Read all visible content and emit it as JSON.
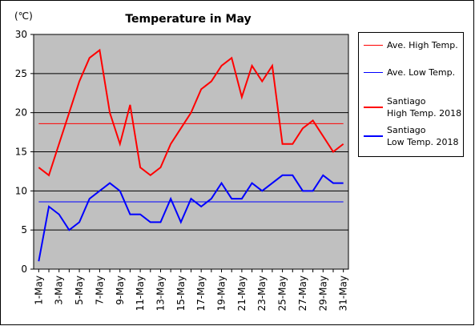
{
  "chart_data": {
    "type": "line",
    "title": "Temperature in May",
    "y_unit": "(℃)",
    "categories": [
      "1-May",
      null,
      "3-May",
      null,
      "5-May",
      null,
      "7-May",
      null,
      "9-May",
      null,
      "11-May",
      null,
      "13-May",
      null,
      "15-May",
      null,
      "17-May",
      null,
      "19-May",
      null,
      "21-May",
      null,
      "23-May",
      null,
      "25-May",
      null,
      "27-May",
      null,
      "29-May",
      null,
      "31-May"
    ],
    "reference_lines": [
      {
        "name": "Ave. High Temp.",
        "color": "#ff0000",
        "value": 18.6
      },
      {
        "name": "Ave. Low Temp.",
        "color": "#0000ff",
        "value": 8.6
      }
    ],
    "series": [
      {
        "name": "Santiago\nHigh Temp. 2018",
        "color": "#ff0000",
        "values": [
          13,
          12,
          16,
          20,
          24,
          27,
          28,
          20,
          16,
          21,
          13,
          12,
          13,
          16,
          18,
          20,
          23,
          24,
          26,
          27,
          22,
          26,
          24,
          26,
          16,
          16,
          18,
          19,
          17,
          15,
          16
        ]
      },
      {
        "name": "Santiago\nLow Temp. 2018",
        "color": "#0000ff",
        "values": [
          1,
          8,
          7,
          5,
          6,
          9,
          10,
          11,
          10,
          7,
          7,
          6,
          6,
          9,
          6,
          9,
          8,
          9,
          11,
          9,
          9,
          11,
          10,
          11,
          12,
          12,
          10,
          10,
          12,
          11,
          11
        ]
      }
    ],
    "ylim": [
      0,
      30
    ],
    "yticks": [
      0,
      5,
      10,
      15,
      20,
      25,
      30
    ],
    "grid": true,
    "plot_background": "#c0c0c0"
  }
}
